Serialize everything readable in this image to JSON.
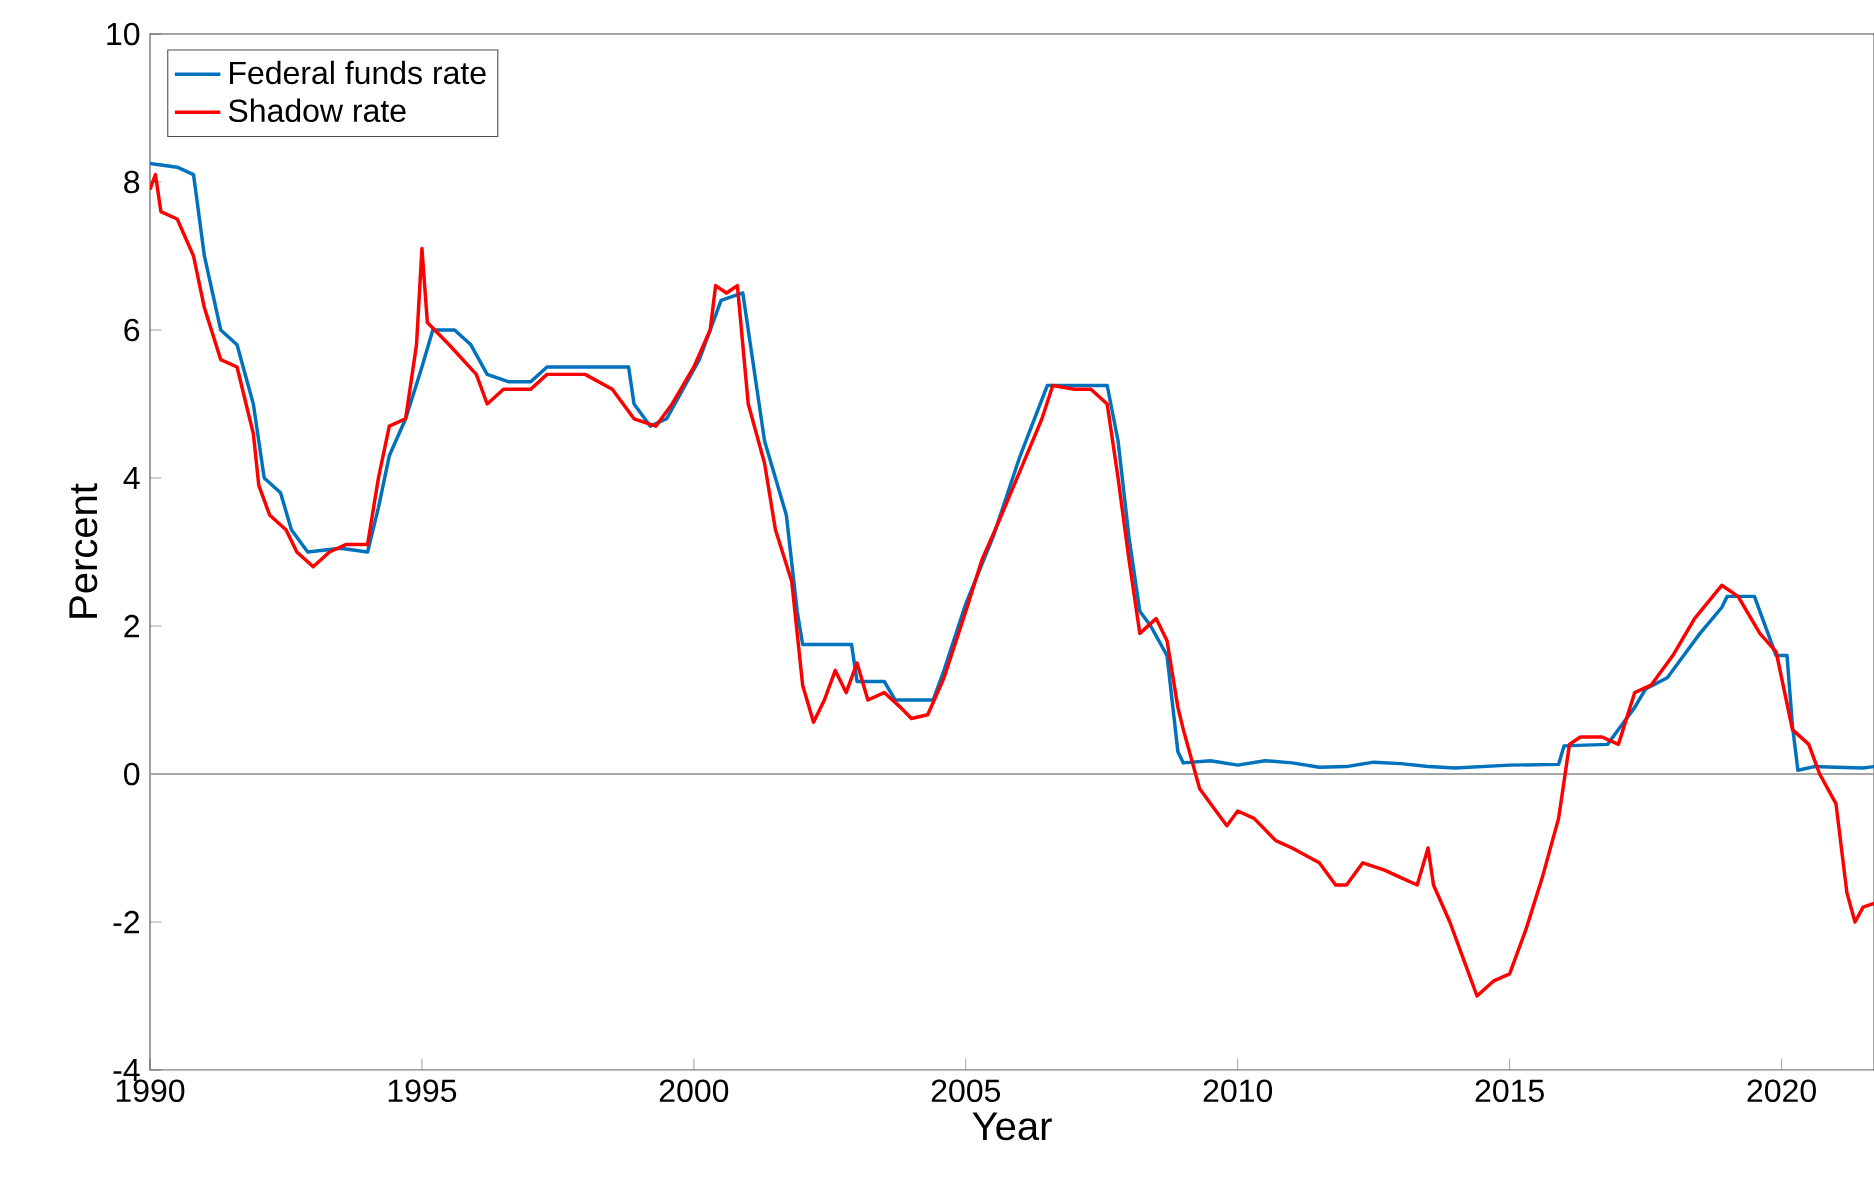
{
  "chart_data": {
    "type": "line",
    "xlabel": "Year",
    "ylabel": "Percent",
    "xlim": [
      1990,
      2021.7
    ],
    "xticks": [
      1990,
      1995,
      2000,
      2005,
      2010,
      2015,
      2020
    ],
    "ylim": [
      -4,
      10
    ],
    "yticks": [
      -4,
      -2,
      0,
      2,
      4,
      6,
      8,
      10
    ],
    "grid": false,
    "legend": "top left",
    "line_style": "solid",
    "marker": "none",
    "ref_lines": [
      {
        "axis": "y",
        "value": 0,
        "color": "#a6a6a6"
      }
    ],
    "series": [
      {
        "name": "Federal funds rate",
        "color": "#0072bd",
        "x": [
          1990.0,
          1990.5,
          1990.8,
          1991.0,
          1991.3,
          1991.6,
          1991.9,
          1992.1,
          1992.4,
          1992.6,
          1992.9,
          1993.5,
          1994.0,
          1994.2,
          1994.4,
          1994.7,
          1995.0,
          1995.2,
          1995.6,
          1995.9,
          1996.2,
          1996.6,
          1997.0,
          1997.3,
          1998.0,
          1998.8,
          1998.9,
          1999.2,
          1999.5,
          1999.8,
          2000.1,
          2000.5,
          2000.9,
          2001.1,
          2001.3,
          2001.7,
          2001.9,
          2002.0,
          2002.9,
          2003.0,
          2003.5,
          2003.7,
          2004.4,
          2004.6,
          2005.0,
          2005.5,
          2006.0,
          2006.5,
          2007.6,
          2007.8,
          2008.0,
          2008.2,
          2008.4,
          2008.7,
          2008.9,
          2009.0,
          2009.5,
          2010.0,
          2010.5,
          2011.0,
          2011.5,
          2012.0,
          2012.5,
          2013.0,
          2013.5,
          2014.0,
          2015.0,
          2015.9,
          2016.0,
          2016.8,
          2017.0,
          2017.3,
          2017.5,
          2017.9,
          2018.2,
          2018.5,
          2018.9,
          2019.0,
          2019.5,
          2019.7,
          2019.9,
          2020.1,
          2020.2,
          2020.3,
          2020.6,
          2021.0,
          2021.5,
          2021.7
        ],
        "values": [
          8.25,
          8.2,
          8.1,
          7.0,
          6.0,
          5.8,
          5.0,
          4.0,
          3.8,
          3.3,
          3.0,
          3.05,
          3.0,
          3.6,
          4.3,
          4.8,
          5.5,
          6.0,
          6.0,
          5.8,
          5.4,
          5.3,
          5.3,
          5.5,
          5.5,
          5.5,
          5.0,
          4.7,
          4.8,
          5.2,
          5.6,
          6.4,
          6.5,
          5.5,
          4.5,
          3.5,
          2.2,
          1.75,
          1.75,
          1.25,
          1.25,
          1.0,
          1.0,
          1.4,
          2.3,
          3.2,
          4.3,
          5.25,
          5.25,
          4.5,
          3.2,
          2.2,
          2.0,
          1.6,
          0.3,
          0.15,
          0.18,
          0.12,
          0.18,
          0.15,
          0.09,
          0.1,
          0.16,
          0.14,
          0.1,
          0.08,
          0.12,
          0.13,
          0.38,
          0.4,
          0.6,
          0.9,
          1.15,
          1.3,
          1.6,
          1.9,
          2.25,
          2.4,
          2.4,
          2.0,
          1.6,
          1.6,
          0.65,
          0.05,
          0.1,
          0.09,
          0.08,
          0.1
        ]
      },
      {
        "name": "Shadow rate",
        "color": "#ff0000",
        "x": [
          1990.0,
          1990.1,
          1990.2,
          1990.5,
          1990.8,
          1991.0,
          1991.3,
          1991.6,
          1991.9,
          1992.0,
          1992.2,
          1992.5,
          1992.7,
          1993.0,
          1993.3,
          1993.6,
          1994.0,
          1994.2,
          1994.4,
          1994.7,
          1994.9,
          1995.0,
          1995.1,
          1995.5,
          1996.0,
          1996.2,
          1996.5,
          1997.0,
          1997.3,
          1998.0,
          1998.5,
          1998.9,
          1999.3,
          1999.6,
          2000.0,
          2000.3,
          2000.4,
          2000.6,
          2000.8,
          2001.0,
          2001.3,
          2001.5,
          2001.8,
          2002.0,
          2002.2,
          2002.4,
          2002.6,
          2002.8,
          2003.0,
          2003.2,
          2003.5,
          2003.8,
          2004.0,
          2004.3,
          2004.6,
          2005.0,
          2005.3,
          2005.6,
          2006.0,
          2006.4,
          2006.6,
          2007.0,
          2007.3,
          2007.6,
          2007.8,
          2008.0,
          2008.2,
          2008.5,
          2008.7,
          2008.9,
          2009.0,
          2009.3,
          2009.6,
          2009.8,
          2010.0,
          2010.3,
          2010.7,
          2011.0,
          2011.5,
          2011.8,
          2012.0,
          2012.3,
          2012.7,
          2013.0,
          2013.3,
          2013.5,
          2013.6,
          2013.9,
          2014.2,
          2014.4,
          2014.7,
          2015.0,
          2015.3,
          2015.6,
          2015.9,
          2016.1,
          2016.3,
          2016.7,
          2017.0,
          2017.3,
          2017.6,
          2018.0,
          2018.4,
          2018.9,
          2019.2,
          2019.6,
          2019.9,
          2020.2,
          2020.5,
          2020.7,
          2021.0,
          2021.2,
          2021.35,
          2021.5,
          2021.7
        ],
        "values": [
          7.9,
          8.1,
          7.6,
          7.5,
          7.0,
          6.3,
          5.6,
          5.5,
          4.6,
          3.9,
          3.5,
          3.3,
          3.0,
          2.8,
          3.0,
          3.1,
          3.1,
          4.0,
          4.7,
          4.8,
          5.8,
          7.1,
          6.1,
          5.8,
          5.4,
          5.0,
          5.2,
          5.2,
          5.4,
          5.4,
          5.2,
          4.8,
          4.7,
          5.0,
          5.5,
          6.0,
          6.6,
          6.5,
          6.6,
          5.0,
          4.2,
          3.3,
          2.6,
          1.2,
          0.7,
          1.0,
          1.4,
          1.1,
          1.5,
          1.0,
          1.1,
          0.9,
          0.75,
          0.8,
          1.3,
          2.2,
          2.9,
          3.4,
          4.1,
          4.8,
          5.25,
          5.2,
          5.2,
          5.0,
          4.0,
          2.9,
          1.9,
          2.1,
          1.8,
          0.9,
          0.6,
          -0.2,
          -0.5,
          -0.7,
          -0.5,
          -0.6,
          -0.9,
          -1.0,
          -1.2,
          -1.5,
          -1.5,
          -1.2,
          -1.3,
          -1.4,
          -1.5,
          -1.0,
          -1.5,
          -2.0,
          -2.6,
          -3.0,
          -2.8,
          -2.7,
          -2.1,
          -1.4,
          -0.6,
          0.4,
          0.5,
          0.5,
          0.4,
          1.1,
          1.2,
          1.6,
          2.1,
          2.55,
          2.4,
          1.9,
          1.65,
          0.6,
          0.4,
          0.0,
          -0.4,
          -1.6,
          -2.0,
          -1.8,
          -1.75
        ]
      }
    ]
  }
}
